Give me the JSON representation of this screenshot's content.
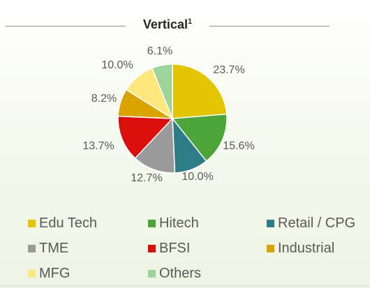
{
  "chart_data": {
    "type": "pie",
    "title": "Vertical",
    "title_sup": "1",
    "categories": [
      "Edu Tech",
      "Hitech",
      "Retail / CPG",
      "TME",
      "BFSI",
      "Industrial",
      "MFG",
      "Others"
    ],
    "values": [
      23.7,
      15.6,
      10.0,
      12.7,
      13.7,
      8.2,
      10.0,
      6.1
    ],
    "value_labels": [
      "23.7%",
      "15.6%",
      "10.0%",
      "12.7%",
      "13.7%",
      "8.2%",
      "10.0%",
      "6.1%"
    ],
    "colors": [
      "#E2C500",
      "#4DA53A",
      "#2E7D86",
      "#9A9A9A",
      "#DB0E0E",
      "#D9A300",
      "#FDE87E",
      "#9ED39A"
    ],
    "legend_position": "bottom",
    "grid": false
  }
}
